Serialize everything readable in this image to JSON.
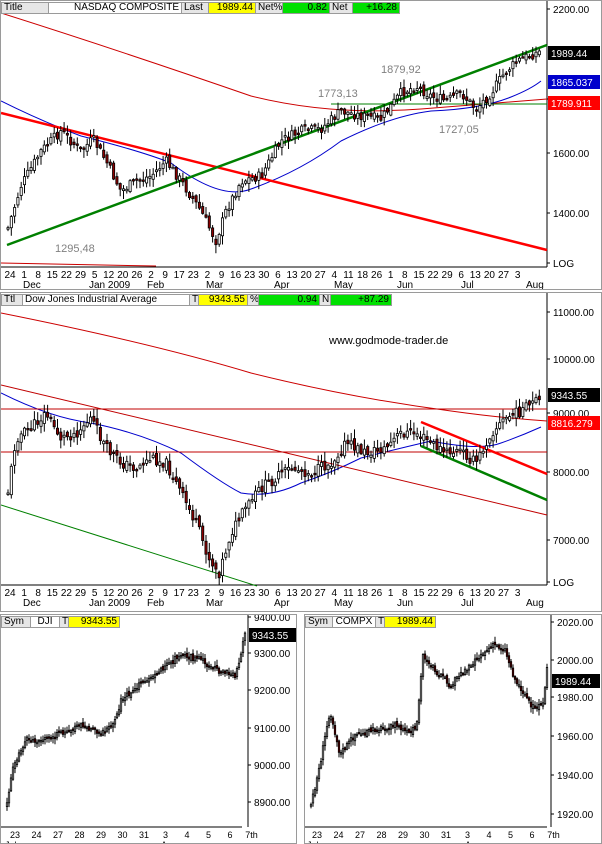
{
  "colors": {
    "up": "#ffffff",
    "down": "#8b0000",
    "green_line": "#008000",
    "red_line": "#ff0000",
    "dark_red": "#c00000",
    "blue_ma": "#0000cc",
    "red_ma": "#cc0000",
    "yellow": "#ffff00",
    "green_box": "#00e000"
  },
  "panel1": {
    "header": {
      "label_title": "Title",
      "name": "NASDAQ COMPOSITE",
      "label_last": "Last",
      "last": "1989.44",
      "label_net_pct": "Net%",
      "net_pct": "0.82",
      "label_net": "Net",
      "net": "+16.28"
    },
    "y_ticks": [
      "2200.00",
      "1800.00",
      "1600.00",
      "1400.00",
      "LOG"
    ],
    "price_tags": [
      {
        "text": "1989.44",
        "bg": "#000000",
        "fg": "#ffffff"
      },
      {
        "text": "1865.037",
        "bg": "#0000cc",
        "fg": "#ffffff"
      },
      {
        "text": "1789.911",
        "bg": "#ff0000",
        "fg": "#ffffff"
      }
    ],
    "annotations": [
      "1879,92",
      "1773,13",
      "1727,05",
      "1295,48"
    ],
    "x_days": [
      "24",
      "1",
      "8",
      "15",
      "22",
      "29",
      "5",
      "12",
      "20",
      "26",
      "2",
      "9",
      "17",
      "23",
      "2",
      "9",
      "16",
      "23",
      "30",
      "6",
      "13",
      "20",
      "27",
      "4",
      "11",
      "18",
      "26",
      "1",
      "8",
      "15",
      "22",
      "29",
      "6",
      "13",
      "20",
      "27",
      "3"
    ],
    "x_months": [
      "Dec",
      "Jan 2009",
      "Feb",
      "Mar",
      "Apr",
      "May",
      "Jun",
      "Jul",
      "Aug"
    ]
  },
  "panel2": {
    "header": {
      "label_title": "Ttl",
      "name": "Dow Jones Industrial Average",
      "label_t": "T",
      "last": "9343.55",
      "label_pct": "%",
      "pct": "0.94",
      "label_net": "N",
      "net": "+87.29"
    },
    "watermark": "www.godmode-trader.de",
    "y_ticks": [
      "11000.00",
      "10000.00",
      "9000.00",
      "8000.00",
      "7000.00",
      "LOG"
    ],
    "price_tags": [
      {
        "text": "9343.55",
        "bg": "#000000",
        "fg": "#ffffff"
      },
      {
        "text": "8816.279",
        "bg": "#ff0000",
        "fg": "#ffffff"
      }
    ],
    "x_days": [
      "24",
      "1",
      "8",
      "15",
      "22",
      "29",
      "5",
      "12",
      "20",
      "26",
      "2",
      "9",
      "17",
      "23",
      "2",
      "9",
      "16",
      "23",
      "30",
      "6",
      "13",
      "20",
      "27",
      "4",
      "11",
      "18",
      "26",
      "1",
      "8",
      "15",
      "22",
      "29",
      "6",
      "13",
      "20",
      "27",
      "3"
    ],
    "x_months": [
      "Dec",
      "Jan 2009",
      "Feb",
      "Mar",
      "Apr",
      "May",
      "Jun",
      "Jul",
      "Aug"
    ]
  },
  "panel3": {
    "header": {
      "label_sym": "Sym",
      "symbol": "DJI",
      "label_t": "T",
      "last": "9343.55"
    },
    "y_ticks": [
      "9400.00",
      "9300.00",
      "9200.00",
      "9100.00",
      "9000.00",
      "8900.00"
    ],
    "price_tag": "9343.55",
    "x_days": [
      "23",
      "24",
      "27",
      "28",
      "29",
      "30",
      "31",
      "3",
      "4",
      "5",
      "6",
      "7th"
    ],
    "x_months": [
      "Jul",
      "Aug"
    ]
  },
  "panel4": {
    "header": {
      "label_sym": "Sym",
      "symbol": "COMPX",
      "label_t": "T",
      "last": "1989.44"
    },
    "y_ticks": [
      "2020.00",
      "2000.00",
      "1980.00",
      "1960.00",
      "1940.00",
      "1920.00"
    ],
    "price_tag": "1989.44",
    "x_days": [
      "23",
      "24",
      "27",
      "28",
      "29",
      "30",
      "31",
      "3",
      "4",
      "5",
      "6",
      "7th"
    ],
    "x_months": [
      "Jul",
      "Aug"
    ]
  },
  "chart_data": [
    {
      "type": "candlestick",
      "title": "NASDAQ COMPOSITE",
      "scale": "log",
      "ylim": [
        1250,
        2200
      ],
      "x_period": [
        "2008-11-24",
        "2009-08-07"
      ],
      "key_levels": {
        "last": 1989.44,
        "sma_blue": 1865.037,
        "sma_red": 1789.911,
        "high_jun": 1879.92,
        "high_may": 1773.13,
        "low_jul": 1727.05,
        "low_nov": 1295.48
      },
      "trendlines": [
        "green uptrend from Nov-2008 low",
        "red downtrend from Nov-2008 high"
      ]
    },
    {
      "type": "candlestick",
      "title": "Dow Jones Industrial Average",
      "scale": "log",
      "ylim": [
        6400,
        11500
      ],
      "x_period": [
        "2008-11-24",
        "2009-08-07"
      ],
      "key_levels": {
        "last": 9343.55,
        "sma_red": 8816.279,
        "change_pct": 0.94,
        "change": 87.29
      }
    },
    {
      "type": "candlestick",
      "title": "DJI",
      "ylim": [
        8850,
        9420
      ],
      "x_period": [
        "2009-07-23",
        "2009-08-07"
      ],
      "last": 9343.55
    },
    {
      "type": "candlestick",
      "title": "COMPX",
      "ylim": [
        1915,
        2025
      ],
      "x_period": [
        "2009-07-23",
        "2009-08-07"
      ],
      "last": 1989.44
    }
  ]
}
